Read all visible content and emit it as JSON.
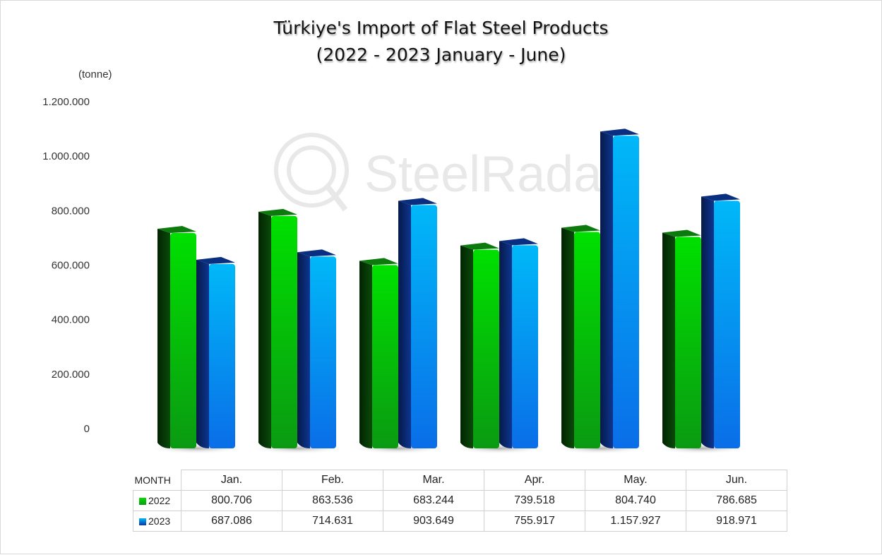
{
  "chart_data": {
    "type": "bar",
    "title_line1": "Türkiye's Import of Flat Steel Products",
    "title_line2": "(2022 - 2023 January - June)",
    "ylabel": "(tonne)",
    "ylim": [
      0,
      1200000
    ],
    "yticks": [
      "0",
      "200.000",
      "400.000",
      "600.000",
      "800.000",
      "1.000.000",
      "1.200.000"
    ],
    "categories": [
      "Jan.",
      "Feb.",
      "Mar.",
      "Apr.",
      "May.",
      "Jun."
    ],
    "series": [
      {
        "name": "2022",
        "color": "#1fcf1f",
        "values": [
          800706,
          863536,
          683244,
          739518,
          804740,
          786685
        ],
        "labels": [
          "800.706",
          "863.536",
          "683.244",
          "739.518",
          "804.740",
          "786.685"
        ]
      },
      {
        "name": "2023",
        "color": "#1a9cf0",
        "values": [
          687086,
          714631,
          903649,
          755917,
          1157927,
          918971
        ],
        "labels": [
          "687.086",
          "714.631",
          "903.649",
          "755.917",
          "1.157.927",
          "918.971"
        ]
      }
    ],
    "table_header": "MONTH",
    "watermark": "SteelRadar",
    "grid": false
  }
}
